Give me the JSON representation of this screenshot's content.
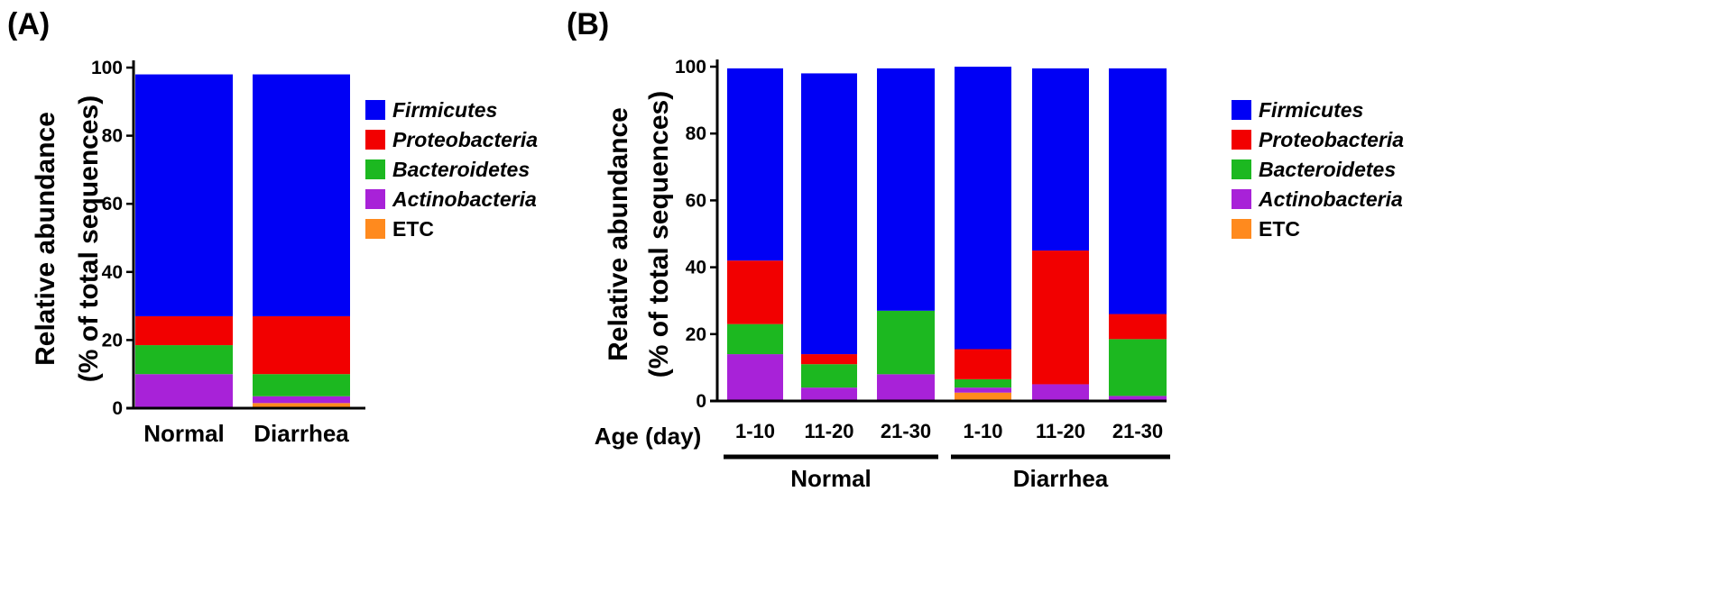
{
  "colors": {
    "Firmicutes": "#0000f5",
    "Proteobacteria": "#f20000",
    "Bacteroidetes": "#1cb820",
    "Actinobacteria": "#a822d8",
    "ETC": "#ff8a1e"
  },
  "chart_data": [
    {
      "panel": "(A)",
      "type": "bar",
      "stacked": true,
      "ylabel_line1": "Relative abundance",
      "ylabel_line2": "(% of total sequences)",
      "ylim": [
        0,
        100
      ],
      "yticks": [
        0,
        20,
        40,
        60,
        80,
        100
      ],
      "categories": [
        "Normal",
        "Diarrhea"
      ],
      "series": [
        {
          "name": "ETC",
          "values": [
            0,
            1.5
          ]
        },
        {
          "name": "Actinobacteria",
          "values": [
            10,
            2
          ]
        },
        {
          "name": "Bacteroidetes",
          "values": [
            8.5,
            6.5
          ]
        },
        {
          "name": "Proteobacteria",
          "values": [
            8.5,
            17
          ]
        },
        {
          "name": "Firmicutes",
          "values": [
            71,
            71
          ]
        }
      ],
      "legend": [
        {
          "name": "Firmicutes",
          "italic": true
        },
        {
          "name": "Proteobacteria",
          "italic": true
        },
        {
          "name": "Bacteroidetes",
          "italic": true
        },
        {
          "name": "Actinobacteria",
          "italic": true
        },
        {
          "name": "ETC",
          "italic": false
        }
      ]
    },
    {
      "panel": "(B)",
      "type": "bar",
      "stacked": true,
      "ylabel_line1": "Relative abundance",
      "ylabel_line2": "(% of total sequences)",
      "ylim": [
        0,
        100
      ],
      "yticks": [
        0,
        20,
        40,
        60,
        80,
        100
      ],
      "xlabel": "Age (day)",
      "categories": [
        "1-10",
        "11-20",
        "21-30",
        "1-10",
        "11-20",
        "21-30"
      ],
      "groups": [
        {
          "name": "Normal",
          "start": 0,
          "end": 2
        },
        {
          "name": "Diarrhea",
          "start": 3,
          "end": 5
        }
      ],
      "series": [
        {
          "name": "ETC",
          "values": [
            0,
            0,
            0,
            2.5,
            0,
            0
          ]
        },
        {
          "name": "Actinobacteria",
          "values": [
            14,
            4,
            8,
            1.5,
            5,
            1.5
          ]
        },
        {
          "name": "Bacteroidetes",
          "values": [
            9,
            7,
            19,
            2.5,
            0,
            17
          ]
        },
        {
          "name": "Proteobacteria",
          "values": [
            19,
            3,
            0,
            9,
            40,
            7.5
          ]
        },
        {
          "name": "Firmicutes",
          "values": [
            57.5,
            84,
            72.5,
            84.5,
            54.5,
            73.5
          ]
        }
      ],
      "legend": [
        {
          "name": "Firmicutes",
          "italic": true
        },
        {
          "name": "Proteobacteria",
          "italic": true
        },
        {
          "name": "Bacteroidetes",
          "italic": true
        },
        {
          "name": "Actinobacteria",
          "italic": true
        },
        {
          "name": "ETC",
          "italic": false
        }
      ]
    }
  ]
}
